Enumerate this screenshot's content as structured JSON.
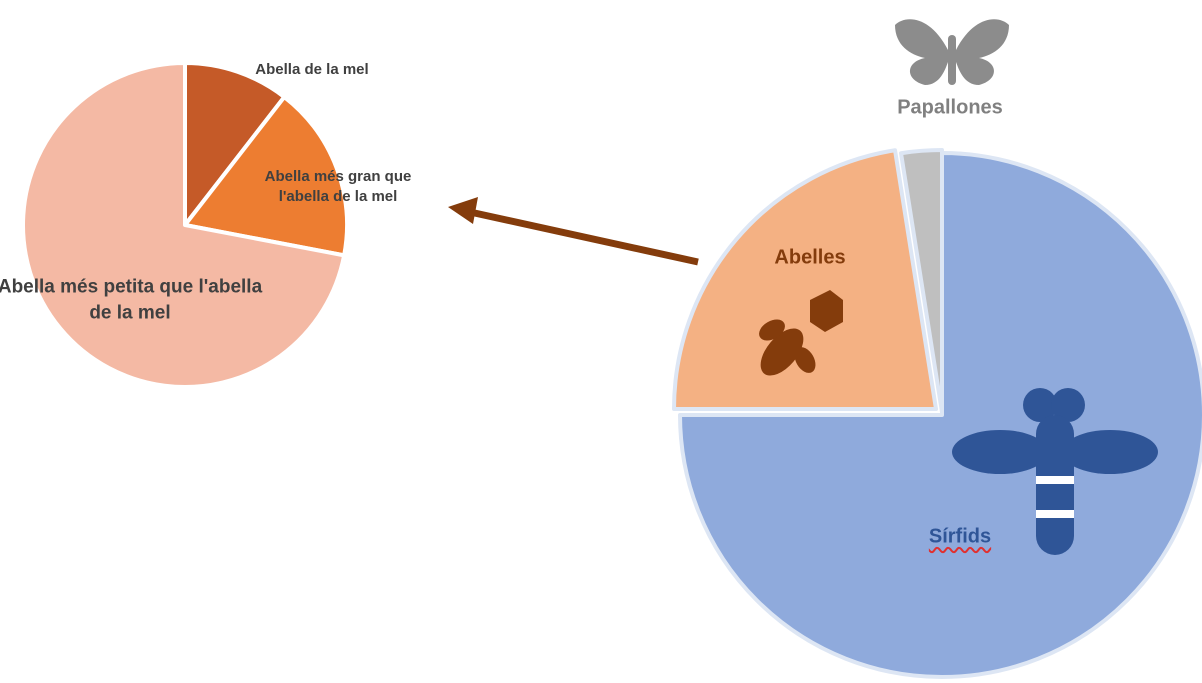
{
  "chart_data": [
    {
      "type": "pie",
      "categories": [
        "Abella de la mel",
        "Abella més gran que l'abella de la mel",
        "Abella més petita que l'abella de la mel"
      ],
      "values": [
        10.5,
        17.5,
        72
      ],
      "colors": [
        "#c55a28",
        "#ed7d31",
        "#f4b9a4"
      ]
    },
    {
      "type": "pie",
      "categories": [
        "Sírfids",
        "Abelles",
        "Papallones"
      ],
      "values": [
        75,
        22.5,
        2.5
      ],
      "colors": [
        "#8faadc",
        "#f4b183",
        "#bfbfbf"
      ]
    }
  ]
}
